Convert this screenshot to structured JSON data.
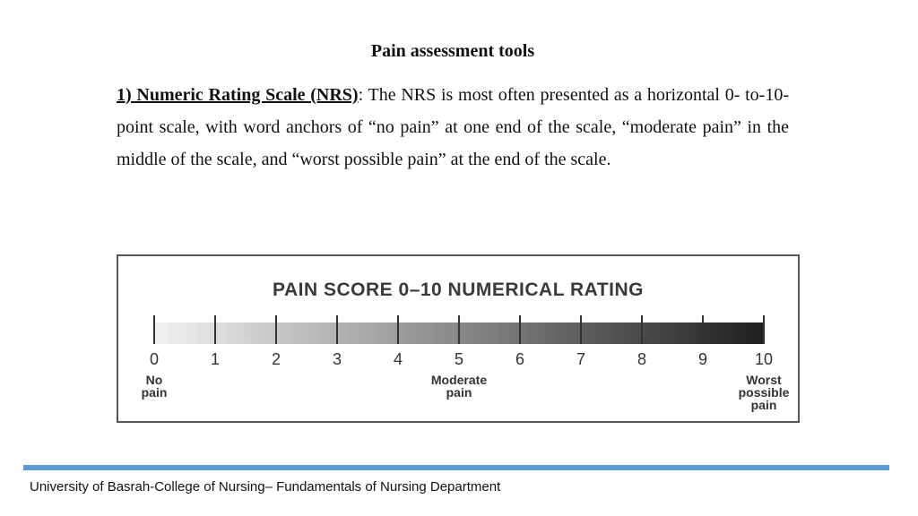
{
  "title": "Pain assessment tools",
  "paragraph": {
    "heading": "1) Numeric Rating Scale (NRS)",
    "body": ": The NRS is most often presented as a horizontal 0- to-10-point scale, with word anchors of “no pain” at one end of the scale, “moderate pain” in the middle of the scale, and “worst possible pain” at the end of the scale."
  },
  "figure": {
    "title": "PAIN SCORE 0–10 NUMERICAL RATING",
    "ticks": [
      "0",
      "1",
      "2",
      "3",
      "4",
      "5",
      "6",
      "7",
      "8",
      "9",
      "10"
    ],
    "anchors": {
      "left": [
        "No",
        "pain"
      ],
      "middle": [
        "Moderate",
        "pain"
      ],
      "right": [
        "Worst",
        "possible",
        "pain"
      ]
    },
    "gradient": {
      "start": "#f2f2f2",
      "end": "#1f1f1f"
    }
  },
  "footer": "University of Basrah-College of Nursing– Fundamentals of Nursing Department",
  "colors": {
    "footer_bar": "#5b9bd5"
  }
}
